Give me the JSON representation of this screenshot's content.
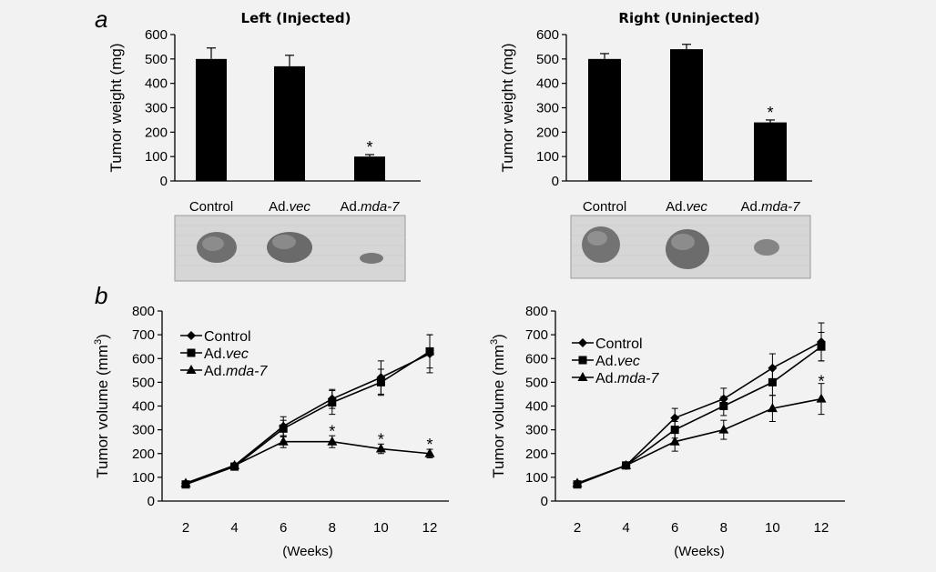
{
  "panel_labels": {
    "a": "a",
    "b": "b"
  },
  "chart_data": [
    {
      "id": "bar_left",
      "type": "bar",
      "title": "Left (Injected)",
      "ylabel": "Tumor weight (mg)",
      "xlabel": "",
      "ylim": [
        0,
        600
      ],
      "yticks": [
        0,
        100,
        200,
        300,
        400,
        500,
        600
      ],
      "categories": [
        "Control",
        "Ad.vec",
        "Ad.mda-7"
      ],
      "category_parts": [
        [
          "Control",
          ""
        ],
        [
          "Ad.",
          "vec"
        ],
        [
          "Ad.",
          "mda-7"
        ]
      ],
      "values": [
        500,
        470,
        100
      ],
      "errors": [
        45,
        45,
        8
      ],
      "significance": [
        "",
        "",
        "*"
      ],
      "image": "tumor-photo-left"
    },
    {
      "id": "bar_right",
      "type": "bar",
      "title": "Right (Uninjected)",
      "ylabel": "Tumor weight (mg)",
      "xlabel": "",
      "ylim": [
        0,
        600
      ],
      "yticks": [
        0,
        100,
        200,
        300,
        400,
        500,
        600
      ],
      "categories": [
        "Control",
        "Ad.vec",
        "Ad.mda-7"
      ],
      "category_parts": [
        [
          "Control",
          ""
        ],
        [
          "Ad.",
          "vec"
        ],
        [
          "Ad.",
          "mda-7"
        ]
      ],
      "values": [
        500,
        540,
        240
      ],
      "errors": [
        22,
        20,
        10
      ],
      "significance": [
        "",
        "",
        "*"
      ],
      "image": "tumor-photo-right"
    },
    {
      "id": "line_left",
      "type": "line",
      "ylabel": "Tumor volume (mm3)",
      "ylabel_parts": [
        "Tumor volume (mm",
        "3",
        ")"
      ],
      "xlabel": "(Weeks)",
      "ylim": [
        0,
        800
      ],
      "yticks": [
        0,
        100,
        200,
        300,
        400,
        500,
        600,
        700,
        800
      ],
      "x": [
        2,
        4,
        6,
        8,
        10,
        12
      ],
      "legend_position": "top-left",
      "series": [
        {
          "name": "Control",
          "name_parts": [
            "Control",
            ""
          ],
          "marker": "diamond",
          "values": [
            75,
            150,
            315,
            430,
            520,
            620
          ],
          "errors": [
            8,
            10,
            40,
            40,
            70,
            80
          ]
        },
        {
          "name": "Ad.vec",
          "name_parts": [
            "Ad.",
            "vec"
          ],
          "marker": "square",
          "values": [
            70,
            145,
            305,
            415,
            500,
            630
          ],
          "errors": [
            8,
            10,
            35,
            50,
            55,
            70
          ]
        },
        {
          "name": "Ad.mda-7",
          "name_parts": [
            "Ad.",
            "mda-7"
          ],
          "marker": "triangle",
          "values": [
            75,
            150,
            250,
            250,
            220,
            200
          ],
          "errors": [
            8,
            10,
            25,
            25,
            20,
            18
          ]
        }
      ],
      "significance": [
        {
          "x": 8,
          "label": "*",
          "above": 285
        },
        {
          "x": 10,
          "label": "*",
          "above": 250
        },
        {
          "x": 12,
          "label": "*",
          "above": 230
        }
      ]
    },
    {
      "id": "line_right",
      "type": "line",
      "ylabel": "Tumor volume (mm3)",
      "ylabel_parts": [
        "Tumor volume (mm",
        "3",
        ")"
      ],
      "xlabel": "(Weeks)",
      "ylim": [
        0,
        800
      ],
      "yticks": [
        0,
        100,
        200,
        300,
        400,
        500,
        600,
        700,
        800
      ],
      "x": [
        2,
        4,
        6,
        8,
        10,
        12
      ],
      "legend_position": "top-left",
      "series": [
        {
          "name": "Control",
          "name_parts": [
            "Control",
            ""
          ],
          "marker": "diamond",
          "values": [
            75,
            150,
            350,
            430,
            560,
            670
          ],
          "errors": [
            8,
            10,
            40,
            45,
            60,
            80
          ]
        },
        {
          "name": "Ad.vec",
          "name_parts": [
            "Ad.",
            "vec"
          ],
          "marker": "square",
          "values": [
            70,
            150,
            300,
            400,
            500,
            650
          ],
          "errors": [
            8,
            10,
            35,
            40,
            55,
            60
          ]
        },
        {
          "name": "Ad.mda-7",
          "name_parts": [
            "Ad.",
            "mda-7"
          ],
          "marker": "triangle",
          "values": [
            75,
            150,
            250,
            300,
            390,
            430
          ],
          "errors": [
            8,
            10,
            40,
            40,
            55,
            65
          ]
        }
      ],
      "significance": [
        {
          "x": 12,
          "label": "*",
          "above": 495
        }
      ]
    }
  ]
}
